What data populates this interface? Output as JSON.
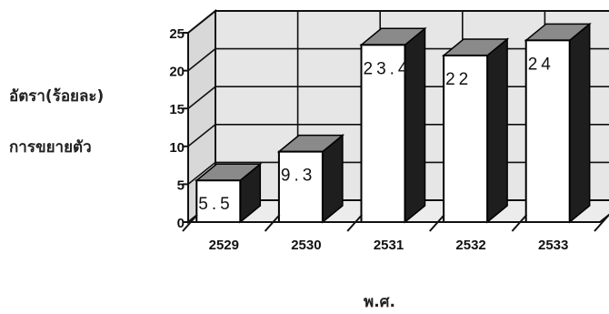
{
  "chart_data": {
    "type": "bar",
    "ylabel_lines": [
      "อัตรา(ร้อยละ)",
      "การขยายตัว"
    ],
    "xlabel": "พ.ศ.",
    "categories": [
      "2529",
      "2530",
      "2531",
      "2532",
      "2533"
    ],
    "values": [
      5.5,
      9.3,
      23.4,
      22,
      24
    ],
    "value_labels": [
      "5.5",
      "9.3",
      "23.4",
      "22",
      "24"
    ],
    "ylim": [
      0,
      25
    ],
    "yticks": [
      0,
      5,
      10,
      15,
      20,
      25
    ],
    "grid": true,
    "style": "3d",
    "colors": {
      "bar_front": "#ffffff",
      "bar_side": "#1e1e1e",
      "bar_top": "#8a8a8a",
      "wall": "#e6e6e6"
    }
  }
}
